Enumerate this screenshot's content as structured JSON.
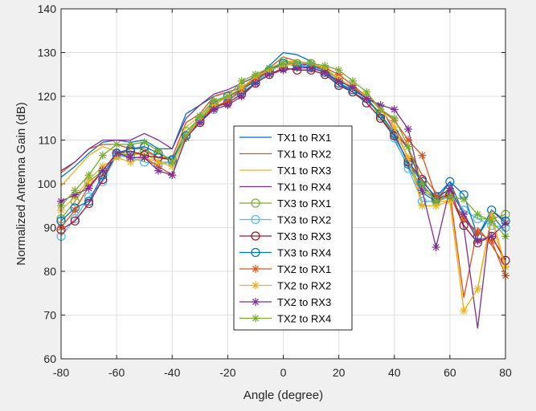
{
  "chart_data": {
    "type": "line",
    "title": "",
    "xlabel": "Angle (degree)",
    "ylabel": "Normalized Antenna Gain (dB)",
    "xlim": [
      -80,
      80
    ],
    "ylim": [
      60,
      140
    ],
    "xticks": [
      -80,
      -60,
      -40,
      -20,
      0,
      20,
      40,
      60,
      80
    ],
    "yticks": [
      60,
      70,
      80,
      90,
      100,
      110,
      120,
      130,
      140
    ],
    "grid": true,
    "legend_position": "center",
    "x": [
      -80,
      -75,
      -70,
      -65,
      -60,
      -55,
      -50,
      -45,
      -40,
      -35,
      -30,
      -25,
      -20,
      -15,
      -10,
      -5,
      0,
      5,
      10,
      15,
      20,
      25,
      30,
      35,
      40,
      45,
      50,
      55,
      60,
      65,
      70,
      75,
      80
    ],
    "series": [
      {
        "name": "TX1 to RX1",
        "color": "#0072bd",
        "marker": "none",
        "values": [
          101.5,
          104,
          107,
          109.5,
          110,
          109.5,
          110,
          108,
          108,
          116,
          118,
          120,
          121,
          122,
          124,
          127,
          130,
          129.5,
          128,
          126,
          123,
          121,
          119,
          116,
          110,
          104,
          98,
          96,
          100.5,
          93,
          88,
          93,
          89
        ]
      },
      {
        "name": "TX1 to RX2",
        "color": "#d95319",
        "marker": "none",
        "values": [
          102.5,
          105,
          108,
          109,
          109,
          108,
          108,
          106,
          106,
          114,
          116,
          120,
          121,
          122,
          124.5,
          126.5,
          129,
          128,
          127.5,
          126,
          124,
          122,
          120,
          117,
          113,
          108,
          102,
          98,
          98,
          74,
          90,
          86,
          81
        ]
      },
      {
        "name": "TX1 to RX3",
        "color": "#edb120",
        "marker": "none",
        "values": [
          99.5,
          103,
          106.5,
          108.5,
          107.5,
          106.5,
          107,
          105,
          105,
          113,
          115.5,
          119,
          120,
          121,
          123,
          126,
          128,
          128,
          127.5,
          125,
          123.5,
          122,
          120,
          115,
          112,
          106,
          96,
          96,
          96,
          71,
          76,
          92,
          80
        ]
      },
      {
        "name": "TX1 to RX4",
        "color": "#7e2f8e",
        "marker": "none",
        "values": [
          103,
          105,
          108,
          110,
          110,
          110,
          111.5,
          110,
          108,
          115,
          118,
          120.5,
          121.5,
          123,
          124.5,
          126,
          127.5,
          127.5,
          127,
          126,
          124,
          122,
          120,
          117.5,
          112,
          108,
          99.5,
          96.5,
          99,
          90,
          67,
          94,
          91
        ]
      },
      {
        "name": "TX3 to RX1",
        "color": "#77ac30",
        "marker": "circle",
        "values": [
          92,
          96,
          100.5,
          103,
          107,
          106.5,
          107.5,
          106,
          105.5,
          112,
          115,
          118.5,
          120,
          122,
          124,
          126,
          128,
          127.5,
          127.5,
          126,
          124,
          121.5,
          119.5,
          115.5,
          111,
          105,
          98.5,
          96.5,
          98,
          94,
          92,
          92,
          93
        ]
      },
      {
        "name": "TX3 to RX2",
        "color": "#4dbeee",
        "marker": "circle",
        "values": [
          88,
          92,
          97,
          100.5,
          106.5,
          106,
          105,
          104.5,
          105,
          111,
          114.5,
          117,
          119,
          121,
          123,
          125.5,
          127.5,
          127,
          127,
          125.5,
          122.5,
          121,
          118.5,
          115,
          110.5,
          103.5,
          96,
          96,
          97.5,
          94,
          92,
          90.5,
          90
        ]
      },
      {
        "name": "TX3 to RX3",
        "color": "#a2142f",
        "marker": "circle",
        "values": [
          89.5,
          91.5,
          95.5,
          101,
          107,
          107.5,
          106.5,
          106,
          105.5,
          111,
          114,
          117.5,
          118.5,
          120.5,
          123,
          125,
          126.5,
          126,
          126,
          125,
          122.5,
          121,
          118.5,
          115,
          111,
          105,
          101,
          96.5,
          97.5,
          90.5,
          86.5,
          88,
          82.5
        ]
      },
      {
        "name": "TX3 to RX4",
        "color": "#0072bd",
        "marker": "circle",
        "values": [
          91.5,
          94.5,
          96,
          102,
          107,
          108,
          108.5,
          107,
          105.5,
          111,
          114.5,
          118,
          120,
          121.5,
          123.5,
          126,
          127.5,
          127,
          126.5,
          125.5,
          123,
          121.5,
          119.5,
          116,
          111.5,
          104.5,
          100.5,
          97,
          100.5,
          97.5,
          88,
          94,
          91.5
        ]
      },
      {
        "name": "TX2 to RX1",
        "color": "#d95319",
        "marker": "asterisk",
        "values": [
          90,
          94,
          99.5,
          103,
          107,
          106,
          106,
          104,
          102,
          110.5,
          115,
          117.5,
          119,
          121.5,
          124,
          126,
          127,
          127.5,
          127.5,
          126.5,
          125,
          122.5,
          120,
          117,
          114.5,
          110,
          106.5,
          97,
          97,
          92,
          89,
          87,
          79
        ]
      },
      {
        "name": "TX2 to RX2",
        "color": "#edb120",
        "marker": "asterisk",
        "values": [
          94,
          97,
          101,
          104,
          106,
          105,
          106,
          105,
          104,
          110.5,
          115,
          118,
          120,
          122,
          124.5,
          126,
          127,
          127.5,
          127.5,
          126.5,
          124,
          122,
          120,
          117,
          113,
          106,
          95,
          95,
          96,
          71,
          76,
          93,
          81
        ]
      },
      {
        "name": "TX2 to RX3",
        "color": "#7e2f8e",
        "marker": "asterisk",
        "values": [
          96,
          97.5,
          99,
          103,
          107,
          106,
          106,
          103,
          102,
          110.5,
          114,
          117,
          118,
          120,
          123,
          125,
          126,
          126.5,
          126.5,
          125.5,
          123.5,
          122,
          119.5,
          118,
          117,
          112.5,
          98.5,
          85.5,
          99,
          93,
          87,
          88,
          91
        ]
      },
      {
        "name": "TX2 to RX4",
        "color": "#77ac30",
        "marker": "asterisk",
        "values": [
          95,
          98.5,
          102,
          106.5,
          109,
          109,
          109.5,
          107.5,
          105,
          111,
          115.5,
          119,
          120,
          123.5,
          125,
          126.5,
          127.5,
          127.5,
          127.5,
          127,
          126,
          123.5,
          121,
          117,
          115,
          108.5,
          100,
          96,
          97,
          96.5,
          93,
          91.5,
          88
        ]
      }
    ]
  }
}
